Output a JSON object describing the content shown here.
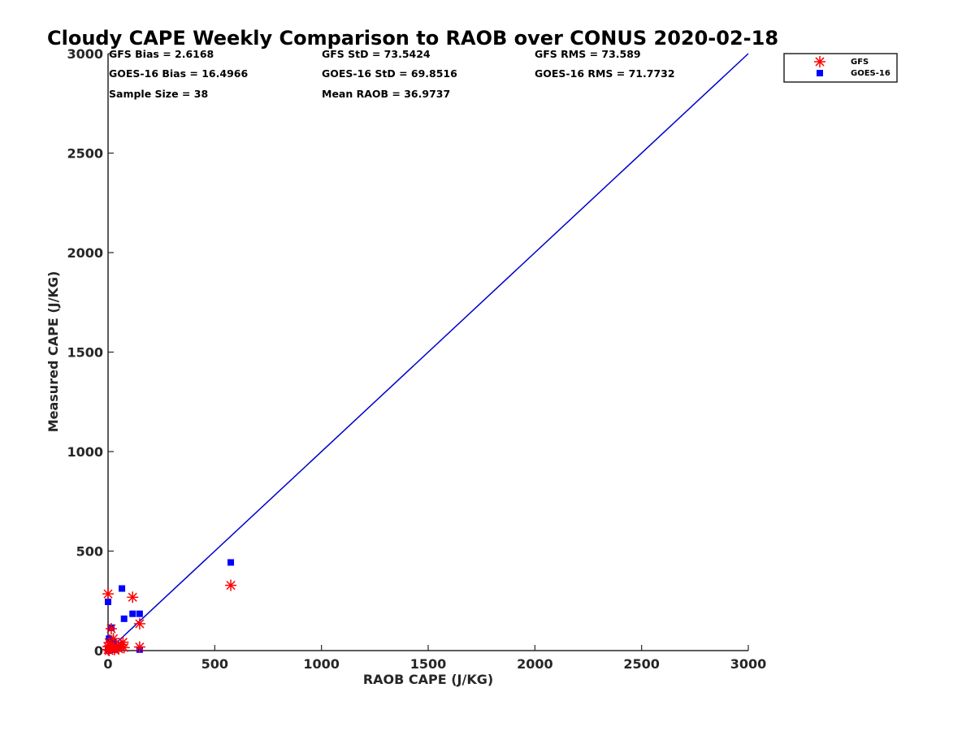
{
  "chart_data": {
    "type": "scatter",
    "title": "Cloudy CAPE Weekly Comparison to RAOB over CONUS 2020-02-18",
    "xlabel": "RAOB CAPE (J/KG)",
    "ylabel": "Measured CAPE (J/KG)",
    "xlim": [
      0,
      3000
    ],
    "ylim": [
      0,
      3000
    ],
    "xticks": [
      0,
      500,
      1000,
      1500,
      2000,
      2500,
      3000
    ],
    "yticks": [
      0,
      500,
      1000,
      1500,
      2000,
      2500,
      3000
    ],
    "grid": false,
    "legend_position": "top-right",
    "stats": [
      "GFS Bias = 2.6168",
      "GFS StD = 73.5424",
      "GFS RMS = 73.589",
      "GOES-16 Bias = 16.4966",
      "GOES-16 StD = 69.8516",
      "GOES-16 RMS = 71.7732",
      "Sample Size = 38",
      "Mean RAOB = 36.9737"
    ],
    "reference_line": {
      "x": [
        0,
        3000
      ],
      "y": [
        0,
        3000
      ],
      "color": "#0000cc"
    },
    "series": [
      {
        "name": "GFS",
        "marker": "asterisk",
        "color": "#ff0000",
        "points": [
          [
            0,
            285
          ],
          [
            115,
            268
          ],
          [
            575,
            328
          ],
          [
            148,
            135
          ],
          [
            148,
            18
          ],
          [
            15,
            110
          ],
          [
            25,
            60
          ],
          [
            70,
            42
          ],
          [
            60,
            30
          ],
          [
            75,
            15
          ],
          [
            5,
            40
          ],
          [
            10,
            25
          ],
          [
            20,
            10
          ],
          [
            30,
            5
          ],
          [
            0,
            5
          ],
          [
            5,
            0
          ],
          [
            15,
            20
          ],
          [
            40,
            15
          ],
          [
            50,
            8
          ],
          [
            0,
            20
          ]
        ]
      },
      {
        "name": "GOES-16",
        "marker": "square",
        "color": "#0000ff",
        "points": [
          [
            0,
            245
          ],
          [
            65,
            312
          ],
          [
            575,
            443
          ],
          [
            115,
            185
          ],
          [
            148,
            185
          ],
          [
            75,
            160
          ],
          [
            15,
            115
          ],
          [
            148,
            5
          ],
          [
            60,
            28
          ],
          [
            40,
            12
          ],
          [
            5,
            60
          ],
          [
            10,
            40
          ],
          [
            20,
            20
          ],
          [
            30,
            5
          ],
          [
            0,
            10
          ],
          [
            5,
            0
          ],
          [
            25,
            45
          ],
          [
            10,
            15
          ]
        ]
      }
    ]
  }
}
